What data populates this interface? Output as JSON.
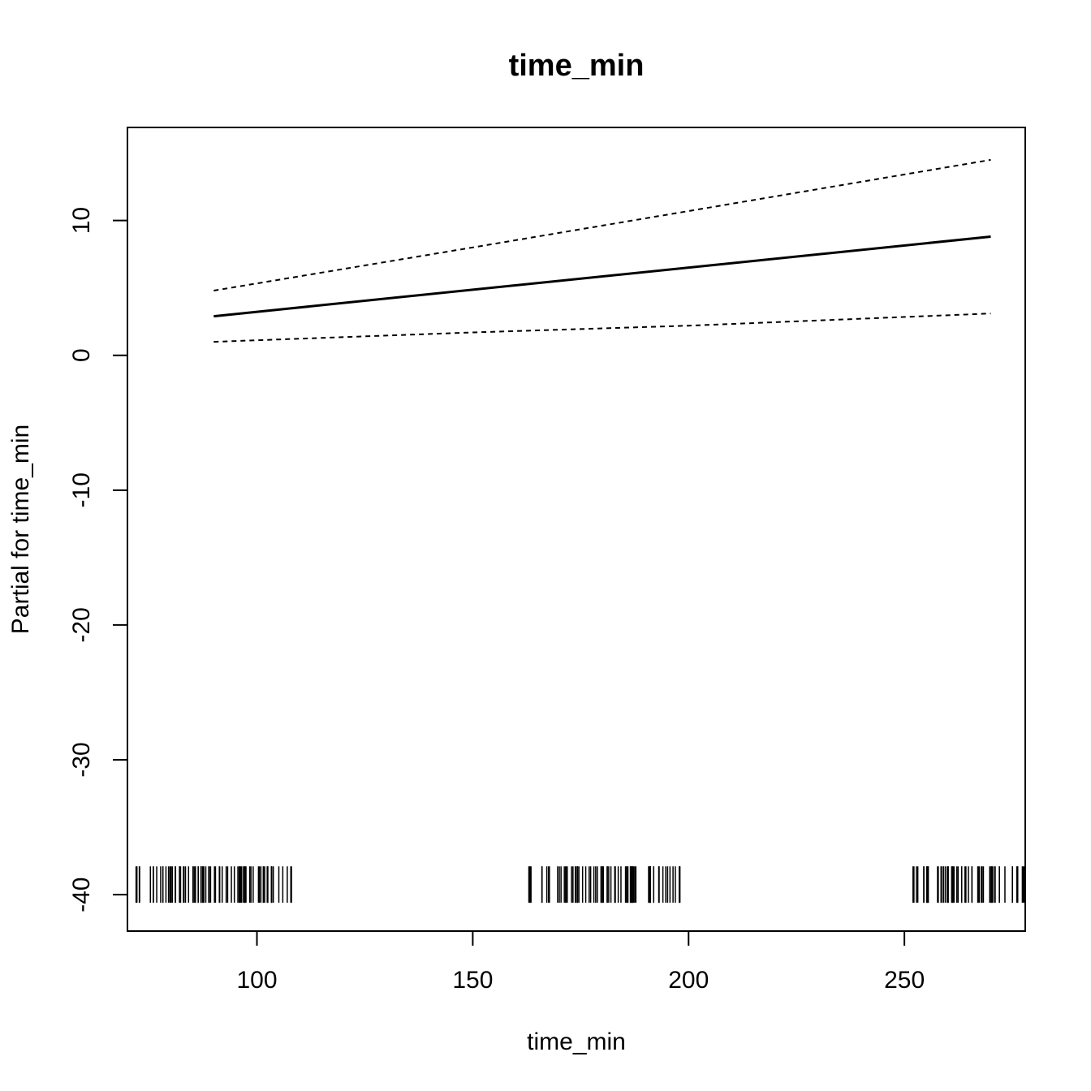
{
  "chart_data": {
    "type": "line",
    "title": "time_min",
    "xlabel": "time_min",
    "ylabel": "Partial for time_min",
    "xlim": [
      70,
      278
    ],
    "ylim": [
      -42.7,
      16.9
    ],
    "x_ticks": [
      100,
      150,
      200,
      250
    ],
    "y_ticks": [
      -40,
      -30,
      -20,
      -10,
      0,
      10
    ],
    "grid": false,
    "series": [
      {
        "role": "fit",
        "style": "solid",
        "x": [
          90,
          270
        ],
        "y": [
          2.9,
          8.8
        ]
      },
      {
        "role": "upper",
        "style": "dashed",
        "x": [
          90,
          150,
          200,
          270
        ],
        "y": [
          4.8,
          8.0,
          10.7,
          14.5
        ]
      },
      {
        "role": "lower",
        "style": "dashed",
        "x": [
          90,
          150,
          200,
          270
        ],
        "y": [
          1.0,
          1.7,
          2.2,
          3.1
        ]
      }
    ],
    "rug": {
      "clusters": [
        {
          "from": 72,
          "to": 108
        },
        {
          "from": 163,
          "to": 198
        },
        {
          "from": 252,
          "to": 278
        }
      ]
    }
  }
}
